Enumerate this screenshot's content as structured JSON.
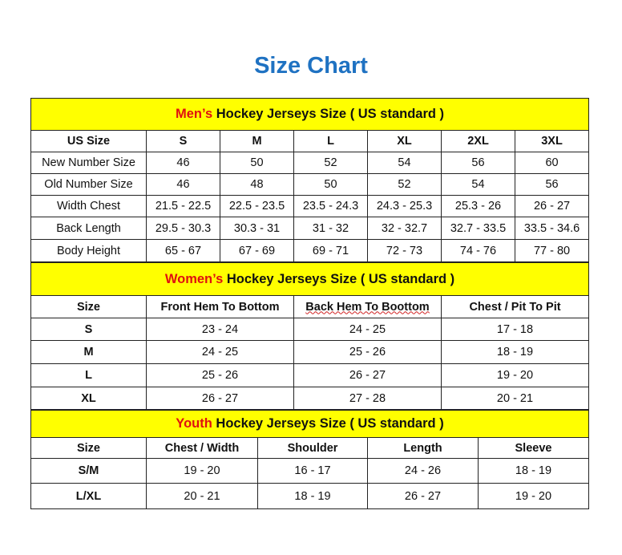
{
  "title": "Size Chart",
  "accent_color": "#1f72c2",
  "header_bg": "#ffff00",
  "highlight_color": "#e01010",
  "men": {
    "heading_prefix": "Men’s",
    "heading_rest": " Hockey Jerseys Size ( US standard )",
    "columns": [
      "US Size",
      "S",
      "M",
      "L",
      "XL",
      "2XL",
      "3XL"
    ],
    "rows": [
      [
        "New Number Size",
        "46",
        "50",
        "52",
        "54",
        "56",
        "60"
      ],
      [
        "Old Number Size",
        "46",
        "48",
        "50",
        "52",
        "54",
        "56"
      ],
      [
        "Width Chest",
        "21.5 - 22.5",
        "22.5 - 23.5",
        "23.5 - 24.3",
        "24.3 - 25.3",
        "25.3 - 26",
        "26 - 27"
      ],
      [
        "Back Length",
        "29.5 - 30.3",
        "30.3 - 31",
        "31 - 32",
        "32 - 32.7",
        "32.7 - 33.5",
        "33.5 - 34.6"
      ],
      [
        "Body Height",
        "65 - 67",
        "67 - 69",
        "69 - 71",
        "72 - 73",
        "74 - 76",
        "77 - 80"
      ]
    ]
  },
  "women": {
    "heading_prefix": "Women’s",
    "heading_rest": " Hockey Jerseys Size ( US standard )",
    "columns": [
      "Size",
      "Front Hem To Bottom",
      "Back Hem To Boottom",
      "Chest / Pit To Pit"
    ],
    "rows": [
      [
        "S",
        "23 - 24",
        "24 - 25",
        "17 - 18"
      ],
      [
        "M",
        "24 - 25",
        "25 - 26",
        "18 - 19"
      ],
      [
        "L",
        "25 - 26",
        "26 - 27",
        "19 - 20"
      ],
      [
        "XL",
        "26 - 27",
        "27 - 28",
        "20 - 21"
      ]
    ]
  },
  "youth": {
    "heading_prefix": "Youth",
    "heading_rest": " Hockey Jerseys Size ( US standard )",
    "columns": [
      "Size",
      "Chest / Width",
      "Shoulder",
      "Length",
      "Sleeve"
    ],
    "rows": [
      [
        "S/M",
        "19 - 20",
        "16 - 17",
        "24 - 26",
        "18 - 19"
      ],
      [
        "L/XL",
        "20 - 21",
        "18 - 19",
        "26 - 27",
        "19 - 20"
      ]
    ]
  }
}
